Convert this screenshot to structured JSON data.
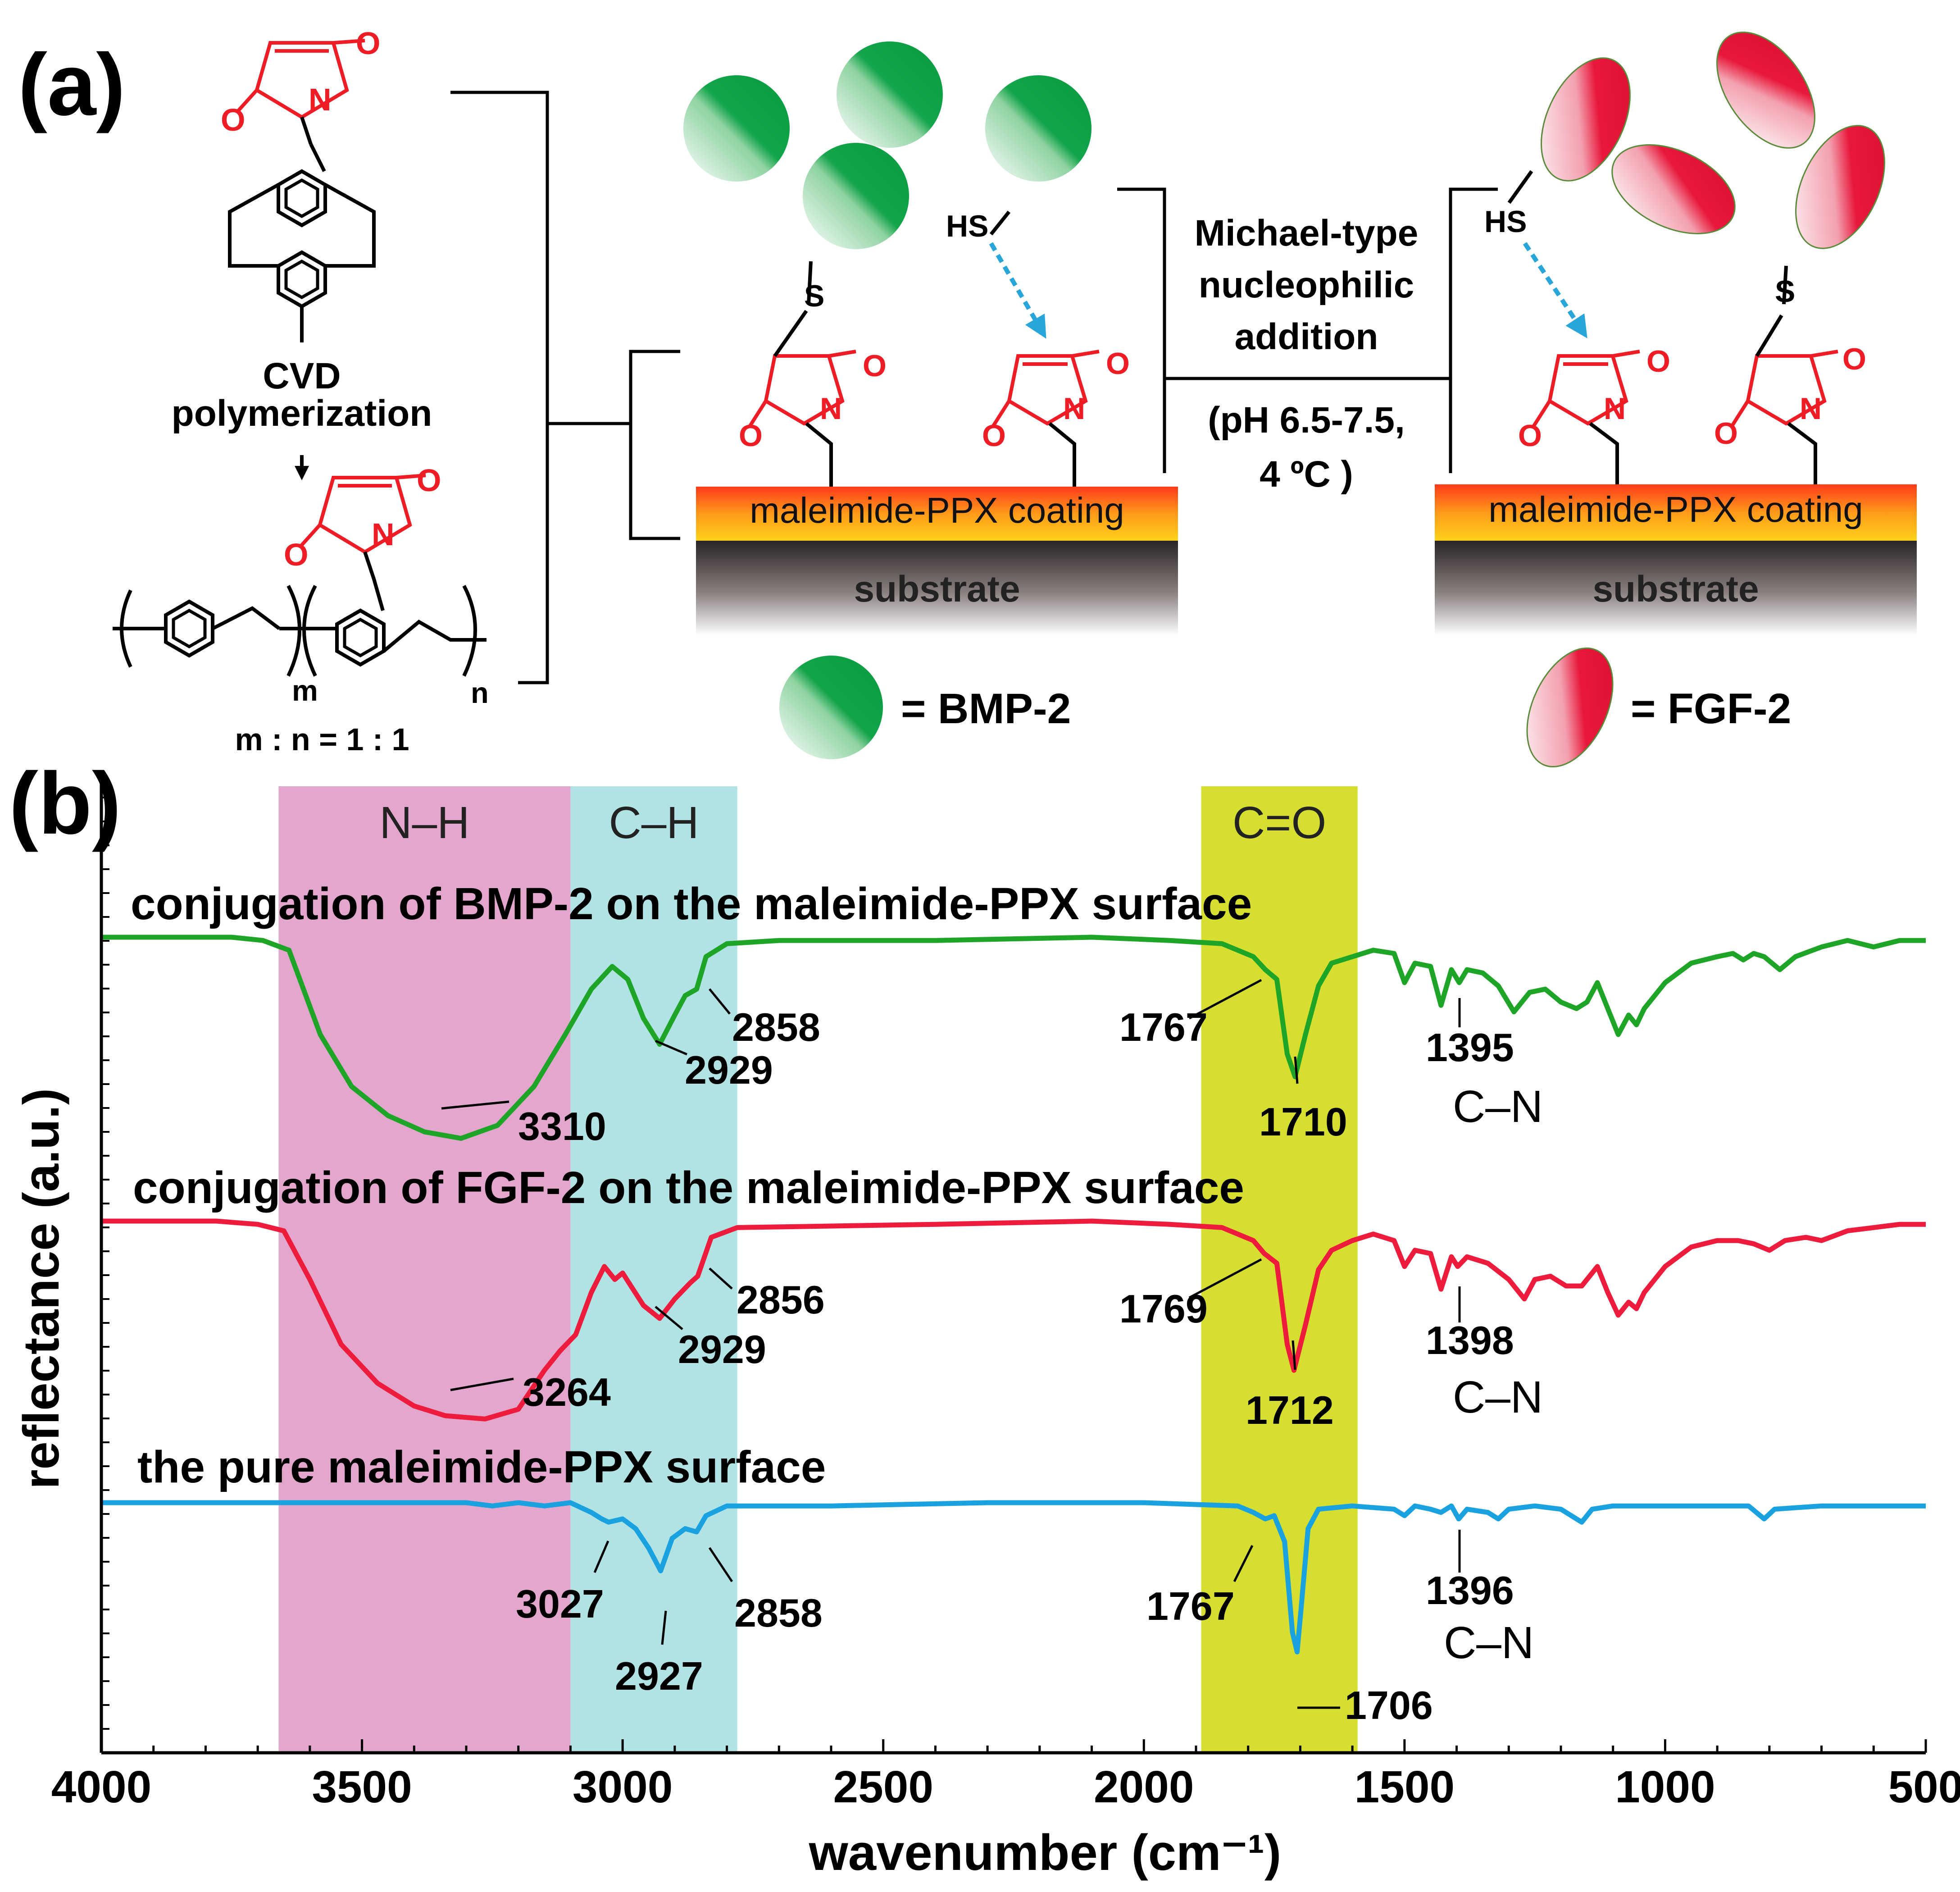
{
  "panel_a": {
    "label": "(a)",
    "cvd_line1": "CVD",
    "cvd_line2": "polymerization",
    "ratio": "m : n = 1 : 1",
    "sub_m": "m",
    "sub_n": "n",
    "hs": "HS",
    "s": "S",
    "n_atom": "N",
    "o_atom": "O",
    "reaction": [
      "Michael-type",
      "nucleophilic",
      "addition"
    ],
    "conditions": [
      "(pH 6.5-7.5,",
      "4 ºC )"
    ],
    "coating": "maleimide-PPX coating",
    "substrate": "substrate",
    "legend_bmp": "= BMP-2",
    "legend_fgf": "= FGF-2",
    "colors": {
      "maleimide": "#ee1c25",
      "bmp": "#12a54a",
      "fgf": "#e8183c",
      "arrow": "#29a6d9"
    }
  },
  "chart_data": {
    "type": "line",
    "panel_label": "(b)",
    "xlabel": "wavenumber (cm⁻¹)",
    "ylabel": "reflectance (a.u.)",
    "xlim": [
      4000,
      500
    ],
    "x_ticks": [
      4000,
      3500,
      3000,
      2500,
      2000,
      1500,
      1000,
      500
    ],
    "bands": [
      {
        "label": "N–H",
        "from": 3660,
        "to": 3100,
        "color": "#e3a6cc"
      },
      {
        "label": "C–H",
        "from": 3100,
        "to": 2780,
        "color": "#b1e2e4"
      },
      {
        "label": "C=O",
        "from": 1890,
        "to": 1590,
        "color": "#d6df2f"
      }
    ],
    "series": [
      {
        "name": "conjugation of BMP-2 on the maleimide-PPX surface",
        "color": "#1ea528",
        "baseline": 0.0,
        "points": [
          [
            4000,
            0
          ],
          [
            3750,
            0
          ],
          [
            3690,
            -0.01
          ],
          [
            3640,
            -0.04
          ],
          [
            3580,
            -0.3
          ],
          [
            3520,
            -0.46
          ],
          [
            3450,
            -0.55
          ],
          [
            3380,
            -0.6
          ],
          [
            3310,
            -0.62
          ],
          [
            3240,
            -0.58
          ],
          [
            3170,
            -0.46
          ],
          [
            3110,
            -0.3
          ],
          [
            3060,
            -0.16
          ],
          [
            3020,
            -0.09
          ],
          [
            2990,
            -0.13
          ],
          [
            2960,
            -0.25
          ],
          [
            2929,
            -0.33
          ],
          [
            2900,
            -0.24
          ],
          [
            2880,
            -0.18
          ],
          [
            2858,
            -0.16
          ],
          [
            2840,
            -0.06
          ],
          [
            2800,
            -0.02
          ],
          [
            2700,
            -0.01
          ],
          [
            2400,
            -0.01
          ],
          [
            2100,
            0.0
          ],
          [
            1950,
            -0.01
          ],
          [
            1850,
            -0.02
          ],
          [
            1790,
            -0.06
          ],
          [
            1767,
            -0.1
          ],
          [
            1745,
            -0.13
          ],
          [
            1725,
            -0.36
          ],
          [
            1710,
            -0.43
          ],
          [
            1690,
            -0.3
          ],
          [
            1665,
            -0.15
          ],
          [
            1640,
            -0.08
          ],
          [
            1600,
            -0.06
          ],
          [
            1560,
            -0.04
          ],
          [
            1520,
            -0.05
          ],
          [
            1500,
            -0.14
          ],
          [
            1480,
            -0.08
          ],
          [
            1450,
            -0.09
          ],
          [
            1430,
            -0.21
          ],
          [
            1410,
            -0.1
          ],
          [
            1395,
            -0.14
          ],
          [
            1380,
            -0.1
          ],
          [
            1350,
            -0.11
          ],
          [
            1320,
            -0.15
          ],
          [
            1290,
            -0.23
          ],
          [
            1260,
            -0.17
          ],
          [
            1230,
            -0.16
          ],
          [
            1200,
            -0.2
          ],
          [
            1170,
            -0.22
          ],
          [
            1150,
            -0.2
          ],
          [
            1130,
            -0.14
          ],
          [
            1110,
            -0.22
          ],
          [
            1090,
            -0.3
          ],
          [
            1070,
            -0.24
          ],
          [
            1055,
            -0.27
          ],
          [
            1040,
            -0.22
          ],
          [
            1000,
            -0.14
          ],
          [
            950,
            -0.08
          ],
          [
            900,
            -0.06
          ],
          [
            870,
            -0.05
          ],
          [
            850,
            -0.07
          ],
          [
            830,
            -0.05
          ],
          [
            810,
            -0.06
          ],
          [
            780,
            -0.1
          ],
          [
            750,
            -0.06
          ],
          [
            700,
            -0.03
          ],
          [
            650,
            -0.01
          ],
          [
            600,
            -0.03
          ],
          [
            550,
            -0.01
          ],
          [
            500,
            -0.01
          ]
        ],
        "peak_labels": [
          "3310",
          "2929",
          "2858",
          "1767",
          "1710",
          "1395"
        ],
        "cn_label": "C–N"
      },
      {
        "name": "conjugation of FGF-2 on the maleimide-PPX surface",
        "color": "#ee1c3c",
        "baseline": 0.0,
        "points": [
          [
            4000,
            0
          ],
          [
            3780,
            0
          ],
          [
            3700,
            -0.01
          ],
          [
            3650,
            -0.03
          ],
          [
            3600,
            -0.18
          ],
          [
            3540,
            -0.38
          ],
          [
            3470,
            -0.5
          ],
          [
            3400,
            -0.57
          ],
          [
            3340,
            -0.6
          ],
          [
            3264,
            -0.61
          ],
          [
            3200,
            -0.58
          ],
          [
            3150,
            -0.46
          ],
          [
            3120,
            -0.4
          ],
          [
            3090,
            -0.35
          ],
          [
            3060,
            -0.22
          ],
          [
            3035,
            -0.14
          ],
          [
            3015,
            -0.18
          ],
          [
            3000,
            -0.16
          ],
          [
            2960,
            -0.26
          ],
          [
            2929,
            -0.3
          ],
          [
            2900,
            -0.24
          ],
          [
            2870,
            -0.19
          ],
          [
            2856,
            -0.17
          ],
          [
            2830,
            -0.05
          ],
          [
            2780,
            -0.02
          ],
          [
            2400,
            -0.01
          ],
          [
            2100,
            0.0
          ],
          [
            1950,
            -0.01
          ],
          [
            1850,
            -0.02
          ],
          [
            1790,
            -0.06
          ],
          [
            1769,
            -0.1
          ],
          [
            1745,
            -0.13
          ],
          [
            1725,
            -0.38
          ],
          [
            1712,
            -0.46
          ],
          [
            1690,
            -0.32
          ],
          [
            1665,
            -0.15
          ],
          [
            1640,
            -0.09
          ],
          [
            1600,
            -0.06
          ],
          [
            1560,
            -0.04
          ],
          [
            1520,
            -0.06
          ],
          [
            1500,
            -0.14
          ],
          [
            1480,
            -0.09
          ],
          [
            1450,
            -0.1
          ],
          [
            1430,
            -0.21
          ],
          [
            1410,
            -0.11
          ],
          [
            1398,
            -0.14
          ],
          [
            1380,
            -0.11
          ],
          [
            1340,
            -0.13
          ],
          [
            1300,
            -0.18
          ],
          [
            1270,
            -0.24
          ],
          [
            1250,
            -0.18
          ],
          [
            1220,
            -0.17
          ],
          [
            1190,
            -0.2
          ],
          [
            1160,
            -0.2
          ],
          [
            1130,
            -0.14
          ],
          [
            1110,
            -0.22
          ],
          [
            1090,
            -0.29
          ],
          [
            1070,
            -0.25
          ],
          [
            1055,
            -0.27
          ],
          [
            1040,
            -0.22
          ],
          [
            1000,
            -0.14
          ],
          [
            950,
            -0.08
          ],
          [
            900,
            -0.06
          ],
          [
            860,
            -0.06
          ],
          [
            830,
            -0.07
          ],
          [
            800,
            -0.09
          ],
          [
            770,
            -0.06
          ],
          [
            730,
            -0.05
          ],
          [
            700,
            -0.06
          ],
          [
            650,
            -0.03
          ],
          [
            600,
            -0.02
          ],
          [
            550,
            -0.01
          ],
          [
            500,
            -0.01
          ]
        ],
        "peak_labels": [
          "3264",
          "2929",
          "2856",
          "1769",
          "1712",
          "1398"
        ],
        "cn_label": "C–N"
      },
      {
        "name": "the pure maleimide-PPX surface",
        "color": "#1aa2e0",
        "baseline": 0.0,
        "points": [
          [
            4000,
            0
          ],
          [
            3300,
            0
          ],
          [
            3250,
            -0.01
          ],
          [
            3200,
            0.0
          ],
          [
            3150,
            -0.01
          ],
          [
            3100,
            0.0
          ],
          [
            3060,
            -0.03
          ],
          [
            3040,
            -0.05
          ],
          [
            3027,
            -0.06
          ],
          [
            3000,
            -0.05
          ],
          [
            2975,
            -0.08
          ],
          [
            2950,
            -0.14
          ],
          [
            2927,
            -0.21
          ],
          [
            2905,
            -0.11
          ],
          [
            2880,
            -0.08
          ],
          [
            2858,
            -0.09
          ],
          [
            2840,
            -0.04
          ],
          [
            2800,
            -0.01
          ],
          [
            2600,
            -0.01
          ],
          [
            2300,
            0.0
          ],
          [
            2000,
            0.0
          ],
          [
            1820,
            -0.01
          ],
          [
            1790,
            -0.03
          ],
          [
            1767,
            -0.05
          ],
          [
            1750,
            -0.04
          ],
          [
            1730,
            -0.12
          ],
          [
            1715,
            -0.4
          ],
          [
            1706,
            -0.46
          ],
          [
            1698,
            -0.32
          ],
          [
            1685,
            -0.08
          ],
          [
            1665,
            -0.02
          ],
          [
            1600,
            -0.01
          ],
          [
            1520,
            -0.02
          ],
          [
            1500,
            -0.04
          ],
          [
            1480,
            -0.01
          ],
          [
            1450,
            -0.02
          ],
          [
            1430,
            -0.03
          ],
          [
            1410,
            -0.01
          ],
          [
            1396,
            -0.05
          ],
          [
            1380,
            -0.02
          ],
          [
            1340,
            -0.03
          ],
          [
            1320,
            -0.05
          ],
          [
            1300,
            -0.02
          ],
          [
            1250,
            -0.01
          ],
          [
            1200,
            -0.02
          ],
          [
            1160,
            -0.06
          ],
          [
            1140,
            -0.02
          ],
          [
            1100,
            -0.01
          ],
          [
            1000,
            -0.01
          ],
          [
            900,
            -0.01
          ],
          [
            840,
            -0.01
          ],
          [
            810,
            -0.05
          ],
          [
            790,
            -0.02
          ],
          [
            700,
            -0.01
          ],
          [
            600,
            -0.01
          ],
          [
            500,
            -0.01
          ]
        ],
        "peak_labels": [
          "3027",
          "2927",
          "2858",
          "1767",
          "1706",
          "1396"
        ],
        "cn_label": "C–N"
      }
    ]
  }
}
